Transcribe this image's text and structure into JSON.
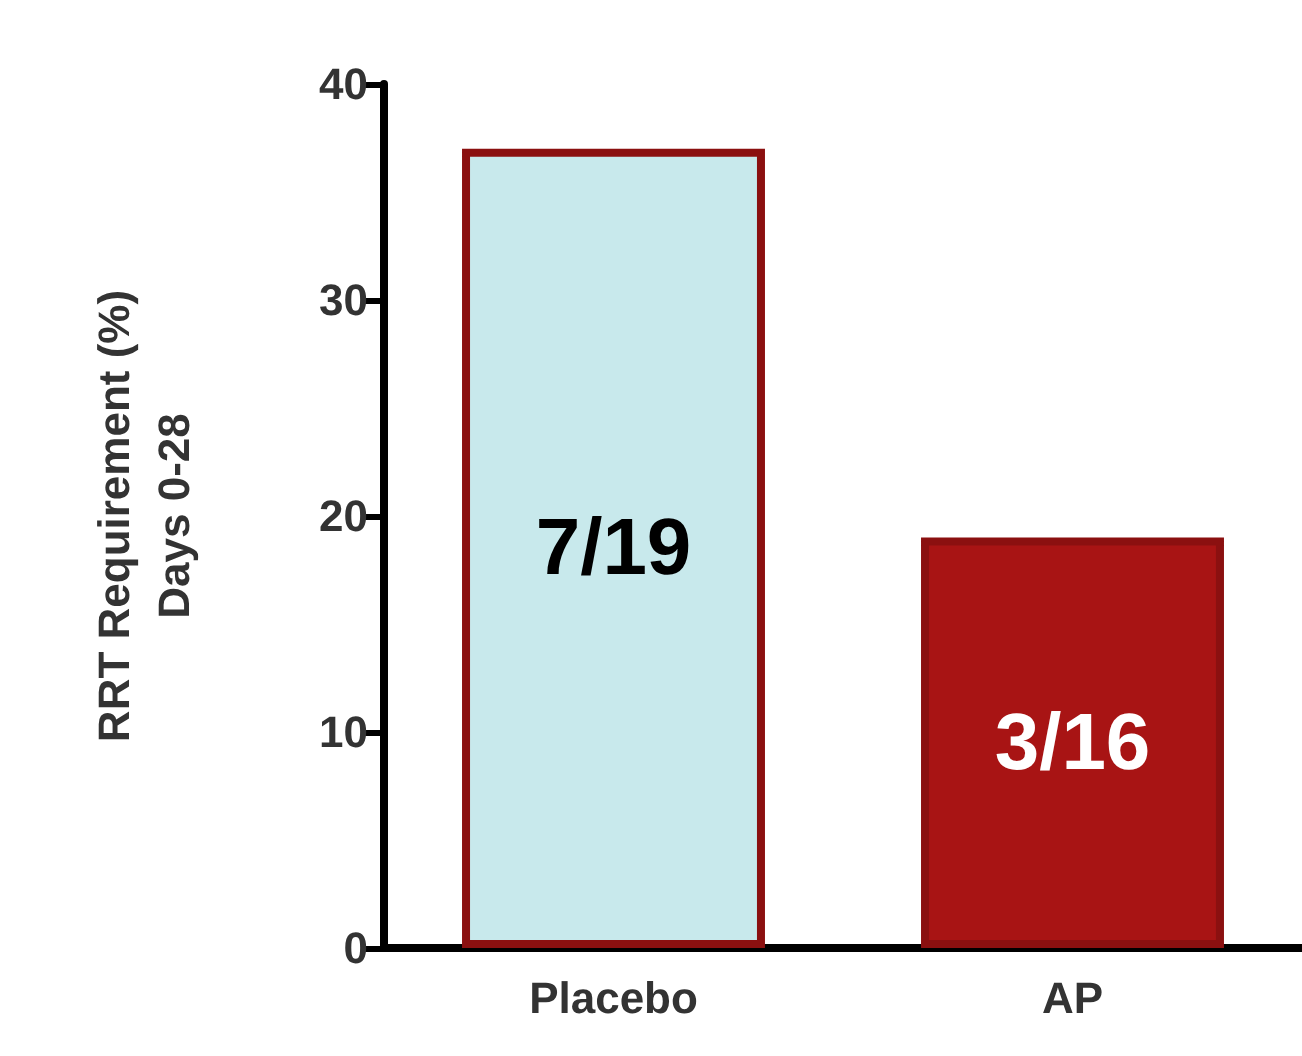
{
  "chart_data": {
    "type": "bar",
    "ylabel": "RRT Requirement (%)\nDays 0-28",
    "categories": [
      "Placebo",
      "AP"
    ],
    "values": [
      37,
      19
    ],
    "colors": [
      "#c8e9ec",
      "#a81414"
    ],
    "annotations": [
      "7/19",
      "3/16"
    ],
    "ylim": [
      0,
      40
    ],
    "yticks": [
      0,
      10,
      20,
      30,
      40
    ],
    "grid": false
  }
}
